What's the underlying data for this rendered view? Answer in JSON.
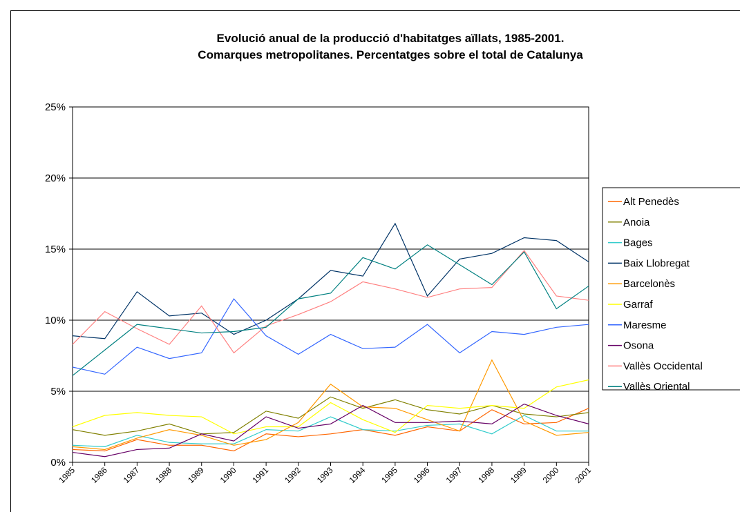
{
  "chart_data": {
    "type": "line",
    "title": "Evolució anual de la producció d'habitatges aïllats, 1985-2001. Comarques metropolitanes. Percentatges sobre el total de Catalunya",
    "categories": [
      "1985",
      "1986",
      "1987",
      "1988",
      "1989",
      "1990",
      "1991",
      "1992",
      "1993",
      "1994",
      "1995",
      "1996",
      "1997",
      "1998",
      "1999",
      "2000",
      "2001"
    ],
    "ylim": [
      0,
      25
    ],
    "yticks": [
      {
        "value": 0,
        "label": "0%"
      },
      {
        "value": 5,
        "label": "5%"
      },
      {
        "value": 10,
        "label": "10%"
      },
      {
        "value": 15,
        "label": "15%"
      },
      {
        "value": 20,
        "label": "20%"
      },
      {
        "value": 25,
        "label": "25%"
      }
    ],
    "grid": true,
    "legend": "right",
    "series": [
      {
        "name": "Alt Penedès",
        "color": "#ff6600",
        "values": [
          0.9,
          0.8,
          1.6,
          1.2,
          1.2,
          0.8,
          2.0,
          1.8,
          2.0,
          2.3,
          1.9,
          2.5,
          2.2,
          3.7,
          2.7,
          2.8,
          3.8
        ]
      },
      {
        "name": "Anoia",
        "color": "#808000",
        "values": [
          2.3,
          1.9,
          2.2,
          2.7,
          2.0,
          2.1,
          3.6,
          3.1,
          4.6,
          3.8,
          4.4,
          3.7,
          3.4,
          4.0,
          3.4,
          3.2,
          3.5
        ]
      },
      {
        "name": "Bages",
        "color": "#33cccc",
        "values": [
          1.2,
          1.1,
          1.9,
          1.4,
          1.3,
          1.3,
          2.3,
          2.2,
          3.2,
          2.3,
          2.2,
          2.6,
          2.7,
          2.0,
          3.3,
          2.2,
          2.2
        ]
      },
      {
        "name": "Baix Llobregat",
        "color": "#003366",
        "values": [
          8.9,
          8.7,
          12.0,
          10.3,
          10.5,
          9.0,
          10.0,
          11.5,
          13.5,
          13.1,
          16.8,
          11.7,
          14.3,
          14.7,
          15.8,
          15.6,
          14.1
        ]
      },
      {
        "name": "Barcelonès",
        "color": "#ff9900",
        "values": [
          1.1,
          0.9,
          1.7,
          2.3,
          1.9,
          1.2,
          1.6,
          2.8,
          5.5,
          3.9,
          3.8,
          3.0,
          2.2,
          7.2,
          2.9,
          1.9,
          2.1
        ]
      },
      {
        "name": "Garraf",
        "color": "#ffff00",
        "values": [
          2.5,
          3.3,
          3.5,
          3.3,
          3.2,
          2.0,
          2.5,
          2.5,
          4.2,
          3.0,
          2.1,
          4.0,
          3.8,
          4.0,
          3.8,
          5.3,
          5.8
        ]
      },
      {
        "name": "Maresme",
        "color": "#3366ff",
        "values": [
          6.7,
          6.2,
          8.1,
          7.3,
          7.7,
          11.5,
          8.9,
          7.6,
          9.0,
          8.0,
          8.1,
          9.7,
          7.7,
          9.2,
          9.0,
          9.5,
          9.7
        ]
      },
      {
        "name": "Osona",
        "color": "#660066",
        "values": [
          0.7,
          0.4,
          0.9,
          1.0,
          2.0,
          1.5,
          3.2,
          2.4,
          2.7,
          4.0,
          2.8,
          2.8,
          2.9,
          2.7,
          4.1,
          3.3,
          2.7
        ]
      },
      {
        "name": "Vallès Occidental",
        "color": "#ff8080",
        "values": [
          8.3,
          10.6,
          9.4,
          8.3,
          11.0,
          7.7,
          9.6,
          10.4,
          11.3,
          12.7,
          12.2,
          11.6,
          12.2,
          12.3,
          14.9,
          11.7,
          11.4
        ]
      },
      {
        "name": "Vallès Oriental",
        "color": "#008080",
        "values": [
          6.1,
          7.9,
          9.7,
          9.4,
          9.1,
          9.2,
          9.5,
          11.5,
          11.9,
          14.4,
          13.6,
          15.3,
          13.9,
          12.5,
          14.8,
          10.8,
          12.4
        ]
      }
    ]
  }
}
